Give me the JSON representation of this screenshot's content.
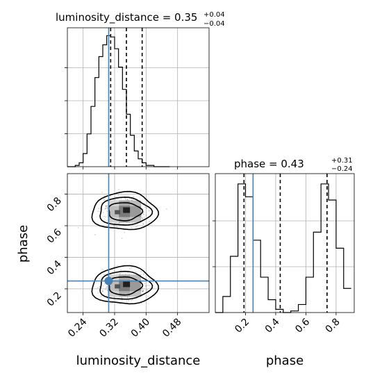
{
  "chart_data": {
    "type": "corner",
    "parameters": [
      "luminosity_distance",
      "phase"
    ],
    "titles": {
      "luminosity_distance": {
        "text": "luminosity_distance = 0.35",
        "plus": "+0.04",
        "minus": "−0.04"
      },
      "phase": {
        "text": "phase = 0.43",
        "plus": "+0.31",
        "minus": "−0.24"
      }
    },
    "xlabels": [
      "luminosity_distance",
      "phase"
    ],
    "ylabel": "phase",
    "truth": {
      "luminosity_distance": 0.305,
      "phase": 0.25
    },
    "luminosity_distance_hist": {
      "xlim": [
        0.2,
        0.56
      ],
      "bin_edges": [
        0.2,
        0.21,
        0.22,
        0.23,
        0.24,
        0.25,
        0.26,
        0.27,
        0.28,
        0.29,
        0.3,
        0.31,
        0.32,
        0.33,
        0.34,
        0.35,
        0.36,
        0.37,
        0.38,
        0.39,
        0.4,
        0.41,
        0.42,
        0.43,
        0.44,
        0.45,
        0.46
      ],
      "counts": [
        0,
        0,
        1,
        3,
        10,
        25,
        46,
        68,
        84,
        93,
        100,
        99,
        90,
        76,
        59,
        40,
        24,
        12,
        6,
        3,
        1,
        1,
        0,
        0,
        0,
        0
      ],
      "quantiles": [
        0.31,
        0.35,
        0.39
      ],
      "xticks": [
        0.24,
        0.32,
        0.4,
        0.48
      ]
    },
    "phase_hist": {
      "xlim": [
        0.0,
        0.92
      ],
      "bin_edges": [
        0.0,
        0.05,
        0.1,
        0.15,
        0.2,
        0.25,
        0.3,
        0.35,
        0.4,
        0.45,
        0.5,
        0.55,
        0.6,
        0.65,
        0.7,
        0.75,
        0.8,
        0.85,
        0.9
      ],
      "counts": [
        0,
        10,
        35,
        80,
        72,
        45,
        22,
        8,
        2,
        0,
        1,
        5,
        22,
        50,
        80,
        70,
        40,
        15
      ],
      "quantiles": [
        0.19,
        0.43,
        0.74
      ],
      "xticks": [
        0.2,
        0.4,
        0.6,
        0.8
      ]
    },
    "scatter_2d": {
      "xlim": [
        0.2,
        0.56
      ],
      "ylim": [
        0.05,
        0.93
      ],
      "xticks": [
        0.24,
        0.32,
        0.4,
        0.48
      ],
      "yticks": [
        0.2,
        0.4,
        0.6,
        0.8
      ],
      "modes": [
        {
          "center": [
            0.345,
            0.69
          ],
          "spread": [
            0.05,
            0.1
          ]
        },
        {
          "center": [
            0.345,
            0.22
          ],
          "spread": [
            0.05,
            0.1
          ]
        }
      ]
    },
    "grid": true
  }
}
